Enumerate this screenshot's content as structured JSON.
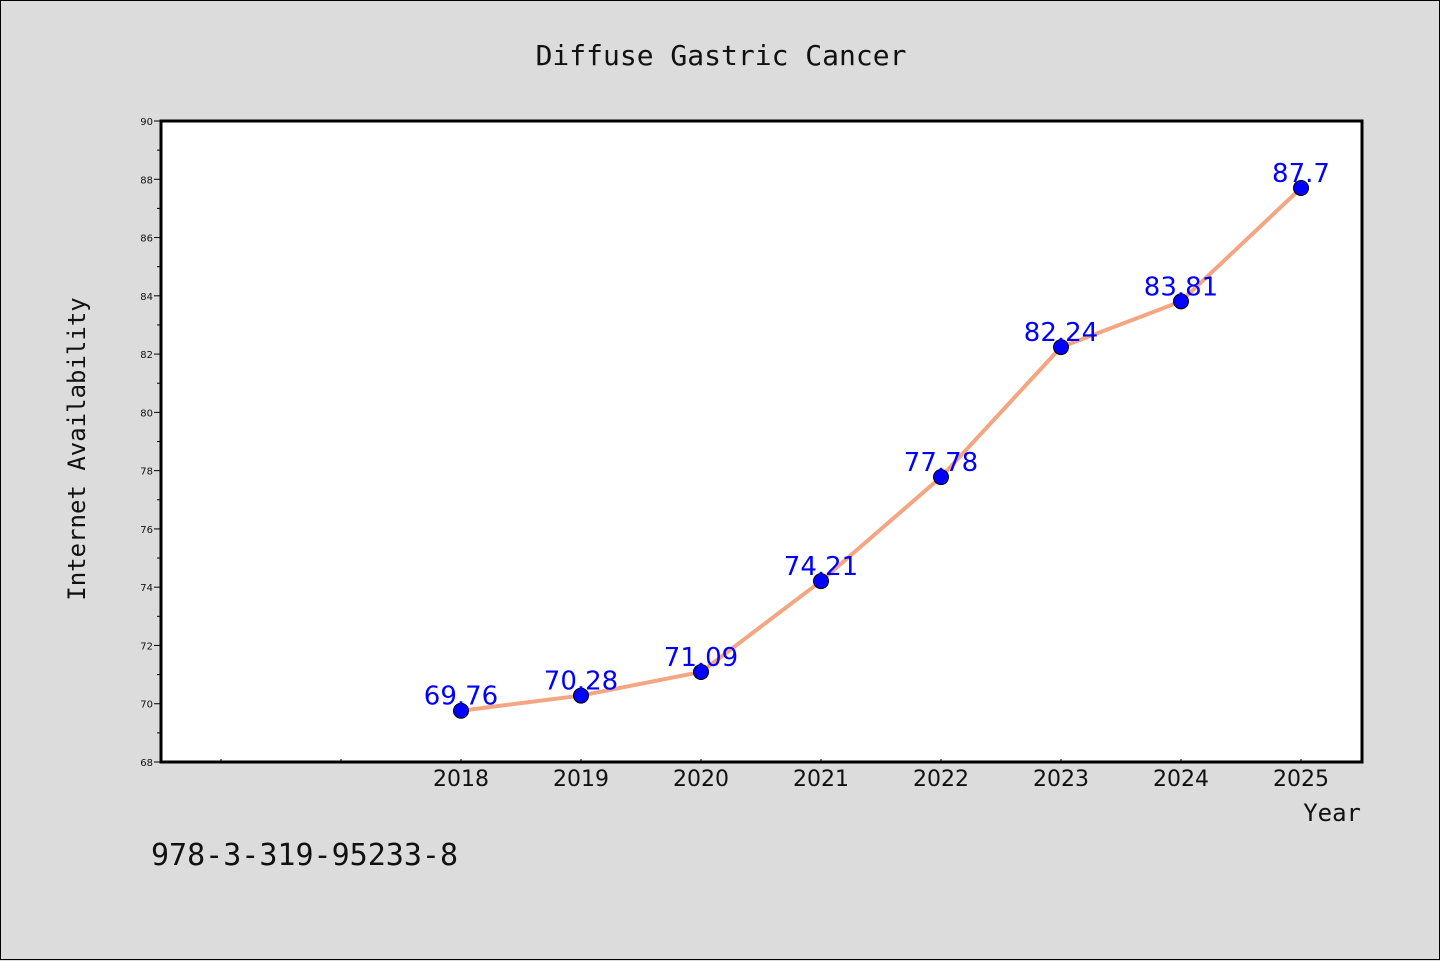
{
  "footer_code": "978-3-319-95233-8",
  "colors": {
    "background": "#dcdcdc",
    "plot_area": "#ffffff",
    "line": "#f4a582",
    "marker": "#0000ff",
    "label": "#0000ff"
  },
  "chart_data": {
    "type": "line",
    "title": "Diffuse Gastric Cancer",
    "xlabel": "Year",
    "ylabel": "Internet Availability",
    "ylim": [
      68,
      90
    ],
    "yticks": [
      "68",
      "70",
      "72",
      "74",
      "76",
      "78",
      "80",
      "82",
      "84",
      "86",
      "88",
      "90"
    ],
    "categories": [
      "2018",
      "2019",
      "2020",
      "2021",
      "2022",
      "2023",
      "2024",
      "2025"
    ],
    "series": [
      {
        "values": [
          69.76,
          70.28,
          71.09,
          74.21,
          77.78,
          82.24,
          83.81,
          87.7
        ],
        "labels": [
          "69.76",
          "70.28",
          "71.09",
          "74.21",
          "77.78",
          "82.24",
          "83.81",
          "87.7"
        ]
      }
    ],
    "grid": false,
    "legend": "none"
  }
}
